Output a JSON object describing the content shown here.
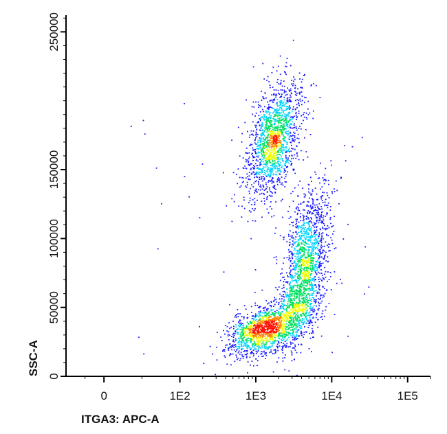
{
  "chart_data": {
    "type": "scatter",
    "style": "density-colored flow cytometry dot plot",
    "xlabel": "ITGA3: APC-A",
    "ylabel": "SSC-A",
    "x_scale": "biexponential",
    "x_ticks": [
      "0",
      "1E2",
      "1E3",
      "1E4",
      "1E5"
    ],
    "x_tick_values": [
      0,
      100,
      1000,
      10000,
      100000
    ],
    "xlim": [
      -100,
      200000
    ],
    "y_ticks": [
      "0",
      "50000",
      "100000",
      "150000",
      "250000"
    ],
    "y_tick_values": [
      0,
      50000,
      100000,
      150000,
      250000
    ],
    "ylim": [
      0,
      262144
    ],
    "grid": false,
    "density_colors": [
      "#1a1aff",
      "#00d4ff",
      "#00e060",
      "#f0ff00",
      "#ff8000",
      "#ff1000"
    ],
    "populations": [
      {
        "center_x": 1700,
        "center_y": 172000,
        "spread_x_decades": 0.17,
        "spread_y": 20000,
        "points": 1600
      },
      {
        "center_x": 1200,
        "center_y": 34000,
        "spread_x_decades": 0.22,
        "spread_y": 9000,
        "points": 1300
      },
      {
        "center_x": 4500,
        "center_y": 85000,
        "spread_x_decades": 0.15,
        "spread_y": 26000,
        "points": 1400
      },
      {
        "center_x": 3500,
        "center_y": 48000,
        "spread_x_decades": 0.18,
        "spread_y": 14000,
        "points": 500
      }
    ]
  }
}
